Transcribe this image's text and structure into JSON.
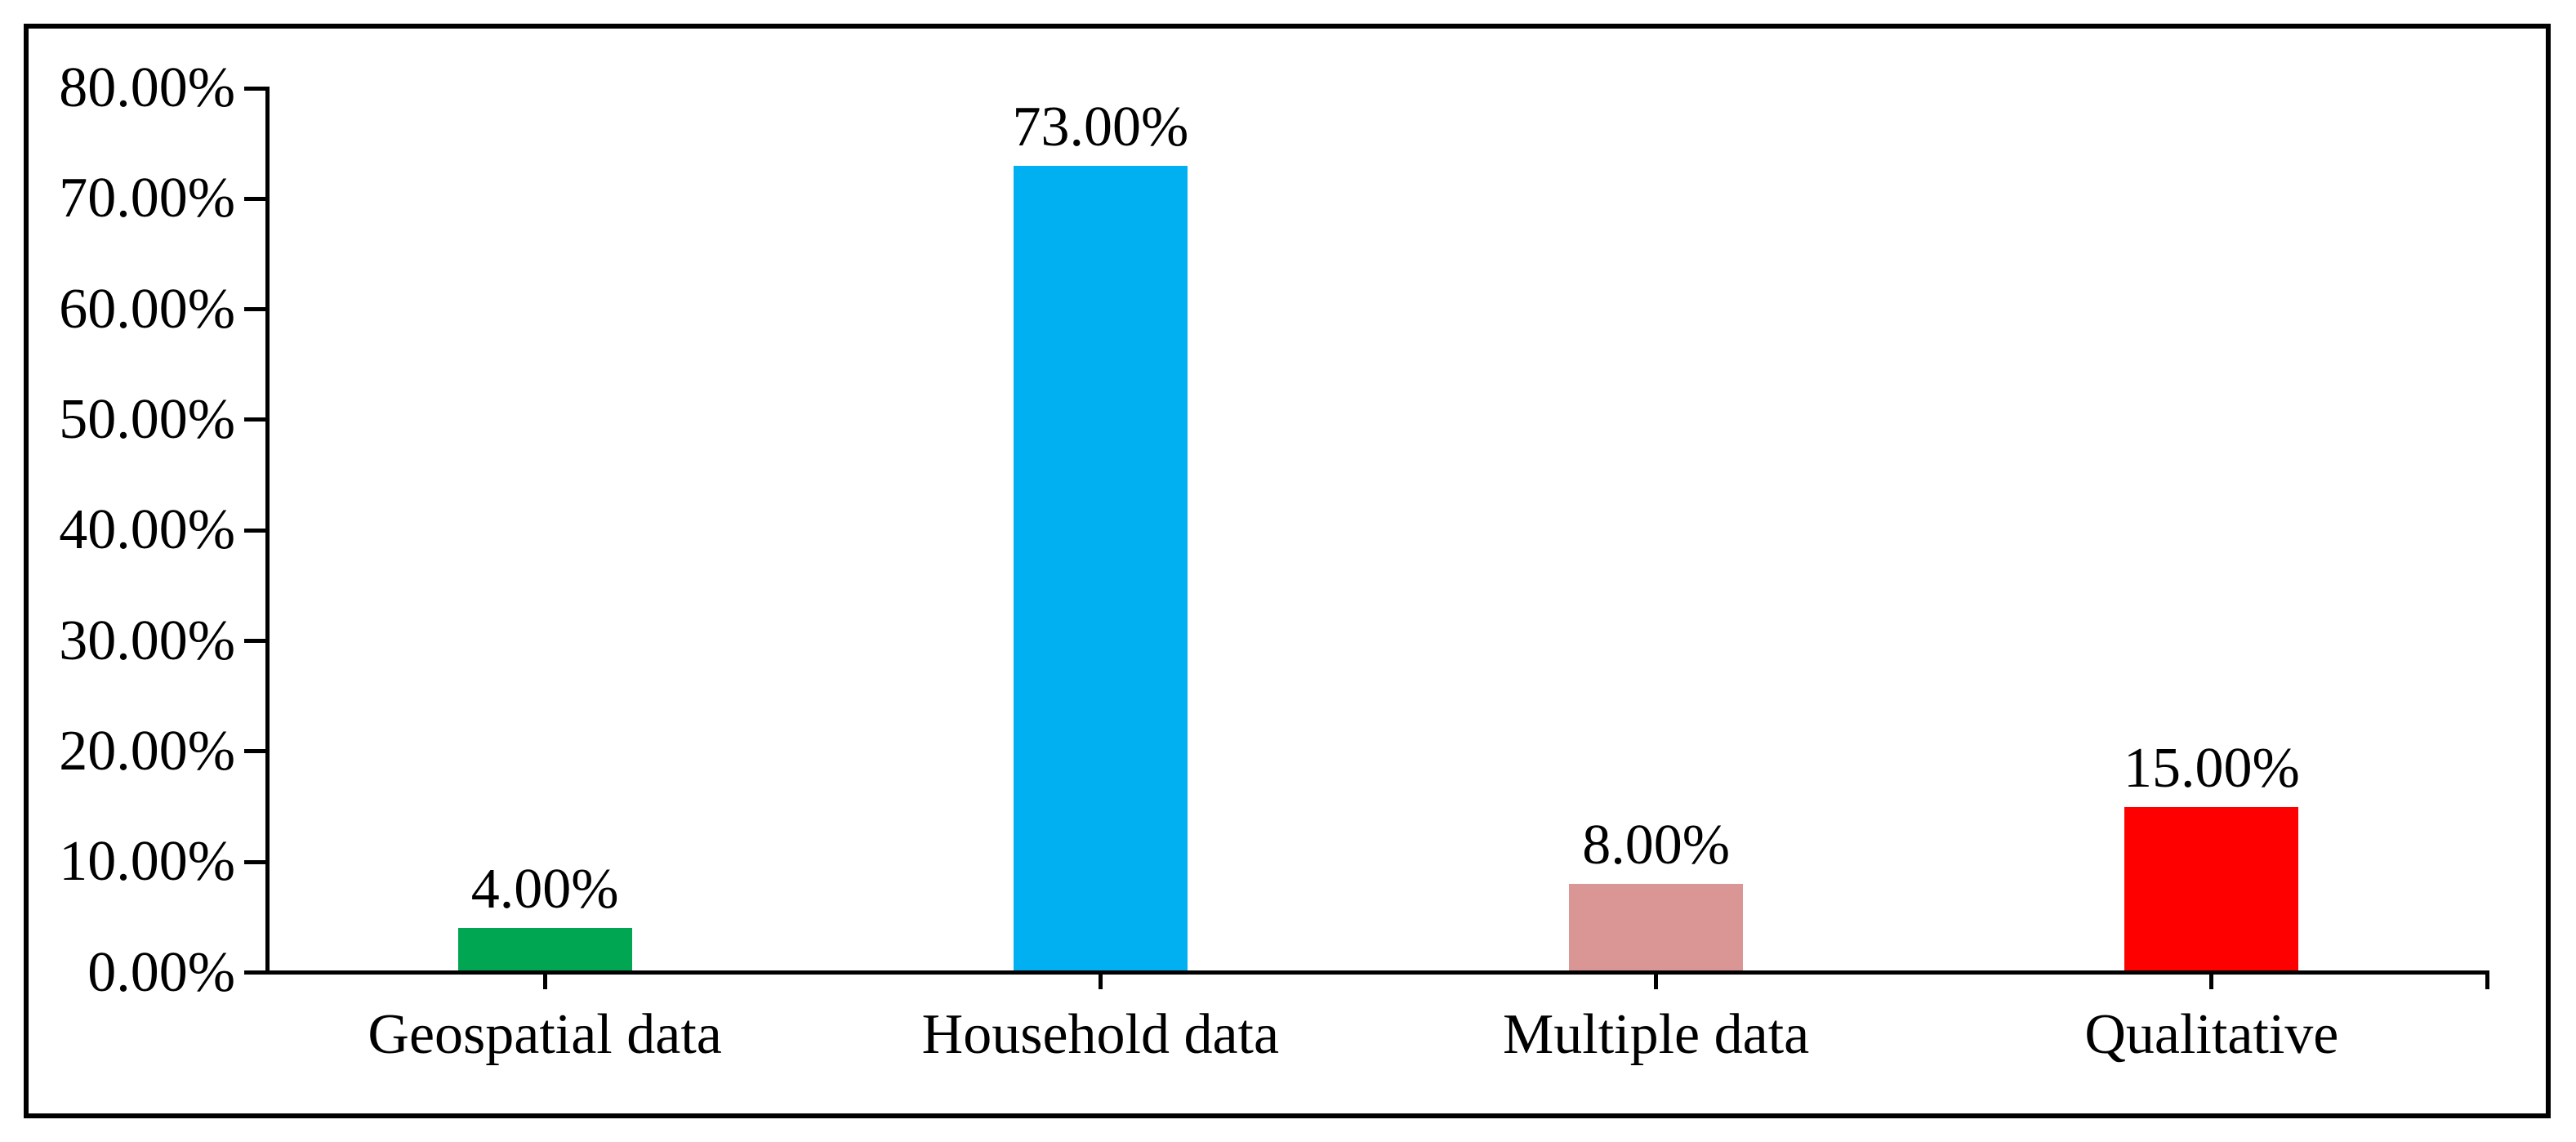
{
  "frame": {
    "visible": true,
    "border_color": "#000000",
    "background_color": "#ffffff"
  },
  "chart_data": {
    "type": "bar",
    "title": "",
    "xlabel": "",
    "ylabel": "",
    "categories": [
      "Geospatial data",
      "Household data",
      "Multiple data",
      "Qualitative"
    ],
    "values": [
      4,
      73,
      8,
      15
    ],
    "value_labels": [
      "4.00%",
      "73.00%",
      "8.00%",
      "15.00%"
    ],
    "bar_colors": [
      "#00A651",
      "#00B0F0",
      "#D99694",
      "#FF0000"
    ],
    "ylim": [
      0,
      80
    ],
    "ytick_step": 10,
    "ytick_labels": [
      "0.00%",
      "10.00%",
      "20.00%",
      "30.00%",
      "40.00%",
      "50.00%",
      "60.00%",
      "70.00%",
      "80.00%"
    ],
    "grid": false,
    "legend": "none",
    "axis_color": "#000000",
    "text_color": "#000000"
  }
}
